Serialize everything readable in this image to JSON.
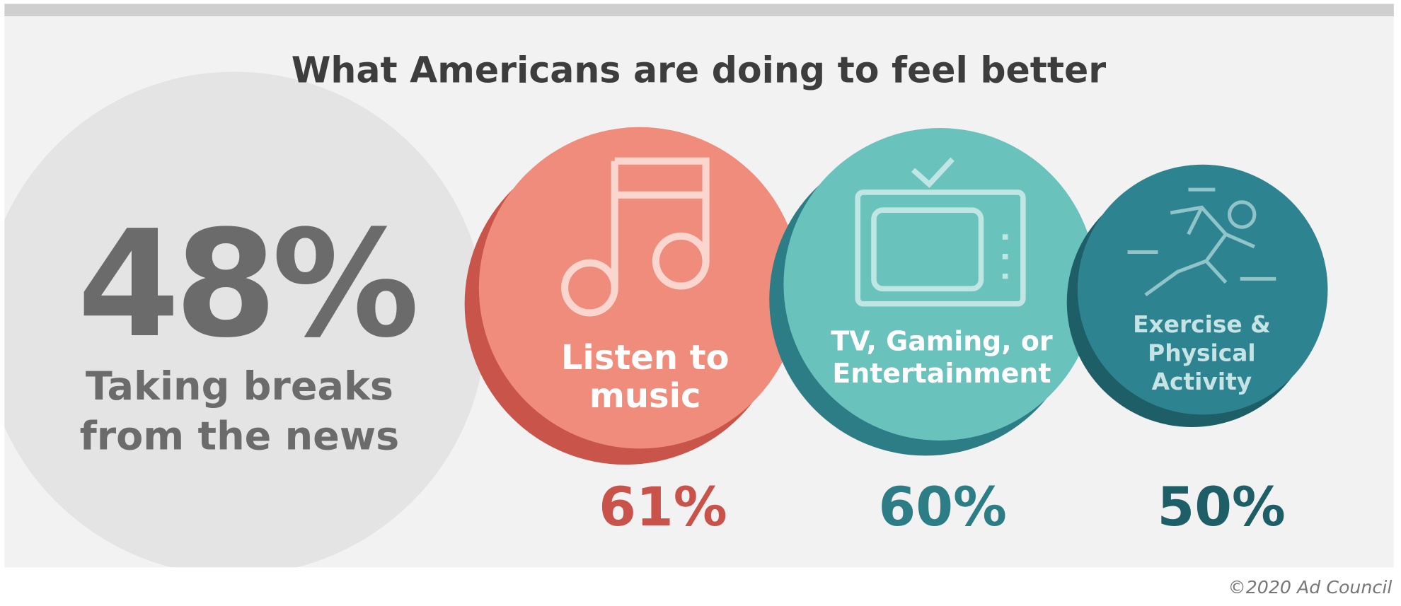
{
  "header": {
    "title": "What Americans are doing to feel better"
  },
  "highlight": {
    "value": "48%",
    "label_lines": [
      "Taking breaks",
      "from the news"
    ]
  },
  "activities": [
    {
      "label_lines": [
        "Listen to",
        "music"
      ],
      "value": "61%"
    },
    {
      "label_lines": [
        "TV, Gaming, or",
        "Entertainment"
      ],
      "value": "60%"
    },
    {
      "label_lines": [
        "Exercise &",
        "Physical",
        "Activity"
      ],
      "value": "50%"
    }
  ],
  "footer": {
    "credit": "©2020 Ad Council"
  }
}
